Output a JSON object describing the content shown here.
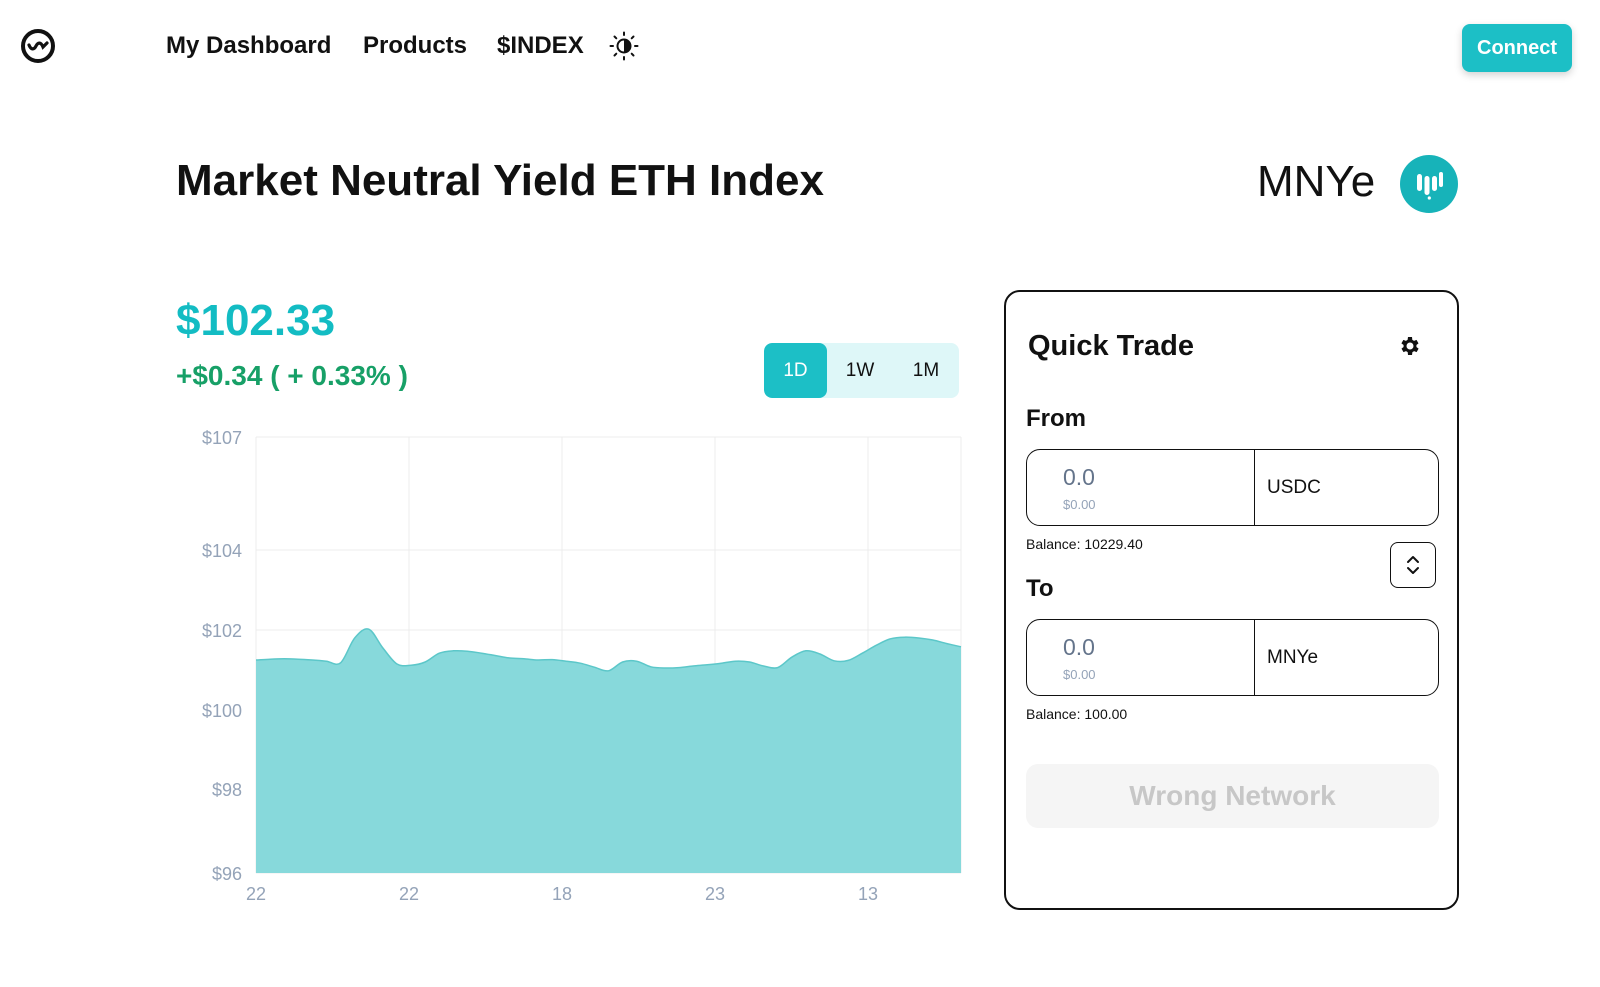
{
  "header": {
    "logo_icon": "logo-icon",
    "nav": [
      {
        "label": "My Dashboard"
      },
      {
        "label": "Products"
      },
      {
        "label": "$INDEX"
      }
    ],
    "theme_icon": "theme-toggle-icon",
    "connect_label": "Connect"
  },
  "product": {
    "title": "Market Neutral Yield ETH Index",
    "ticker": "MNYe",
    "price": "$102.33",
    "change": "+$0.34 ( + 0.33% )"
  },
  "range": {
    "options": [
      "1D",
      "1W",
      "1M"
    ],
    "selected": "1D"
  },
  "chart_data": {
    "type": "area",
    "y_ticks": [
      "$107",
      "$104",
      "$102",
      "$100",
      "$98",
      "$96"
    ],
    "y_tick_values": [
      107,
      104,
      102,
      100,
      98,
      96
    ],
    "x_ticks": [
      "22",
      "22",
      "18",
      "23",
      "13"
    ],
    "ylim": [
      96,
      107
    ],
    "grid": true,
    "fill_color": "#87d9db",
    "line_color": "#5cc7c9",
    "x": [
      0,
      2,
      4,
      6,
      8,
      10,
      12,
      14,
      16,
      18,
      20,
      22,
      24,
      26,
      28,
      30,
      32,
      34,
      36,
      38,
      40,
      42,
      44,
      46,
      48,
      50,
      52,
      54,
      56,
      58,
      60,
      62,
      64,
      66,
      68,
      70,
      72,
      74,
      76,
      78,
      80,
      82,
      84,
      86,
      88,
      90,
      92,
      94,
      96,
      98,
      100
    ],
    "values": [
      101.25,
      101.27,
      101.28,
      101.27,
      101.25,
      101.22,
      101.18,
      101.8,
      102.02,
      101.55,
      101.15,
      101.12,
      101.2,
      101.42,
      101.48,
      101.47,
      101.42,
      101.36,
      101.3,
      101.28,
      101.25,
      101.26,
      101.22,
      101.17,
      101.07,
      100.98,
      101.2,
      101.22,
      101.08,
      101.05,
      101.06,
      101.1,
      101.13,
      101.17,
      101.22,
      101.2,
      101.1,
      101.06,
      101.32,
      101.48,
      101.4,
      101.23,
      101.24,
      101.42,
      101.62,
      101.78,
      101.82,
      101.8,
      101.75,
      101.66,
      101.58
    ]
  },
  "quick_trade": {
    "title": "Quick Trade",
    "settings_icon": "gear-icon",
    "from_label": "From",
    "to_label": "To",
    "from": {
      "placeholder": "0.0",
      "usd": "$0.00",
      "token": "USDC",
      "balance": "Balance: 10229.40"
    },
    "to": {
      "placeholder": "0.0",
      "usd": "$0.00",
      "token": "MNYe",
      "balance": "Balance: 100.00"
    },
    "swap_icon": "swap-direction-icon",
    "action_label": "Wrong Network"
  },
  "colors": {
    "accent": "#1cbfc6",
    "positive": "#17a067",
    "disabled_text": "#c7c7c7"
  }
}
